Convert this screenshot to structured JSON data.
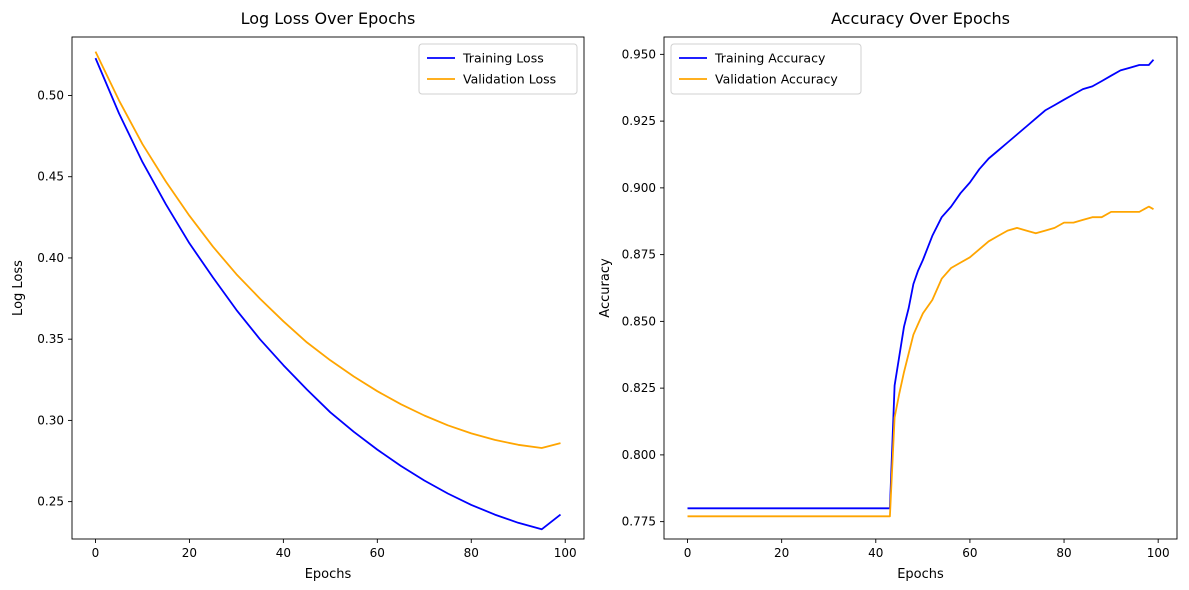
{
  "chart_data": [
    {
      "type": "line",
      "title": "Log Loss Over Epochs",
      "xlabel": "Epochs",
      "ylabel": "Log Loss",
      "xlim": [
        -5,
        104
      ],
      "ylim": [
        0.227,
        0.536
      ],
      "xticks": [
        0,
        20,
        40,
        60,
        80,
        100
      ],
      "yticks": [
        0.25,
        0.3,
        0.35,
        0.4,
        0.45,
        0.5
      ],
      "ytick_labels": [
        "0.25",
        "0.30",
        "0.35",
        "0.40",
        "0.45",
        "0.50"
      ],
      "grid": false,
      "legend_position": "upper right",
      "x": [
        0,
        5,
        10,
        15,
        20,
        25,
        30,
        35,
        40,
        45,
        50,
        55,
        60,
        65,
        70,
        75,
        80,
        85,
        90,
        95,
        99
      ],
      "series": [
        {
          "name": "Training Loss",
          "color": "#0000ff",
          "values": [
            0.523,
            0.489,
            0.459,
            0.433,
            0.409,
            0.388,
            0.368,
            0.35,
            0.334,
            0.319,
            0.305,
            0.293,
            0.282,
            0.272,
            0.263,
            0.255,
            0.248,
            0.242,
            0.237,
            0.233,
            0.242
          ]
        },
        {
          "name": "Validation Loss",
          "color": "#ffa500",
          "values": [
            0.527,
            0.497,
            0.47,
            0.447,
            0.426,
            0.407,
            0.39,
            0.375,
            0.361,
            0.348,
            0.337,
            0.327,
            0.318,
            0.31,
            0.303,
            0.297,
            0.292,
            0.288,
            0.285,
            0.283,
            0.286
          ]
        }
      ]
    },
    {
      "type": "line",
      "title": "Accuracy Over Epochs",
      "xlabel": "Epochs",
      "ylabel": "Accuracy",
      "xlim": [
        -5,
        104
      ],
      "ylim": [
        0.7685,
        0.9565
      ],
      "xticks": [
        0,
        20,
        40,
        60,
        80,
        100
      ],
      "yticks": [
        0.775,
        0.8,
        0.825,
        0.85,
        0.875,
        0.9,
        0.925,
        0.95
      ],
      "ytick_labels": [
        "0.775",
        "0.800",
        "0.825",
        "0.850",
        "0.875",
        "0.900",
        "0.925",
        "0.950"
      ],
      "grid": false,
      "legend_position": "upper left",
      "x": [
        0,
        10,
        20,
        30,
        40,
        43,
        44,
        45,
        46,
        47,
        48,
        49,
        50,
        52,
        54,
        56,
        58,
        60,
        62,
        64,
        66,
        68,
        70,
        72,
        74,
        76,
        78,
        80,
        82,
        84,
        86,
        88,
        90,
        92,
        94,
        96,
        98,
        99
      ],
      "series": [
        {
          "name": "Training Accuracy",
          "color": "#0000ff",
          "values": [
            0.78,
            0.78,
            0.78,
            0.78,
            0.78,
            0.78,
            0.826,
            0.837,
            0.848,
            0.855,
            0.864,
            0.869,
            0.873,
            0.882,
            0.889,
            0.893,
            0.898,
            0.902,
            0.907,
            0.911,
            0.914,
            0.917,
            0.92,
            0.923,
            0.926,
            0.929,
            0.931,
            0.933,
            0.935,
            0.937,
            0.938,
            0.94,
            0.942,
            0.944,
            0.945,
            0.946,
            0.946,
            0.948
          ]
        },
        {
          "name": "Validation Accuracy",
          "color": "#ffa500",
          "values": [
            0.777,
            0.777,
            0.777,
            0.777,
            0.777,
            0.777,
            0.814,
            0.823,
            0.831,
            0.838,
            0.845,
            0.849,
            0.853,
            0.858,
            0.866,
            0.87,
            0.872,
            0.874,
            0.877,
            0.88,
            0.882,
            0.884,
            0.885,
            0.884,
            0.883,
            0.884,
            0.885,
            0.887,
            0.887,
            0.888,
            0.889,
            0.889,
            0.891,
            0.891,
            0.891,
            0.891,
            0.893,
            0.892
          ]
        }
      ]
    }
  ]
}
